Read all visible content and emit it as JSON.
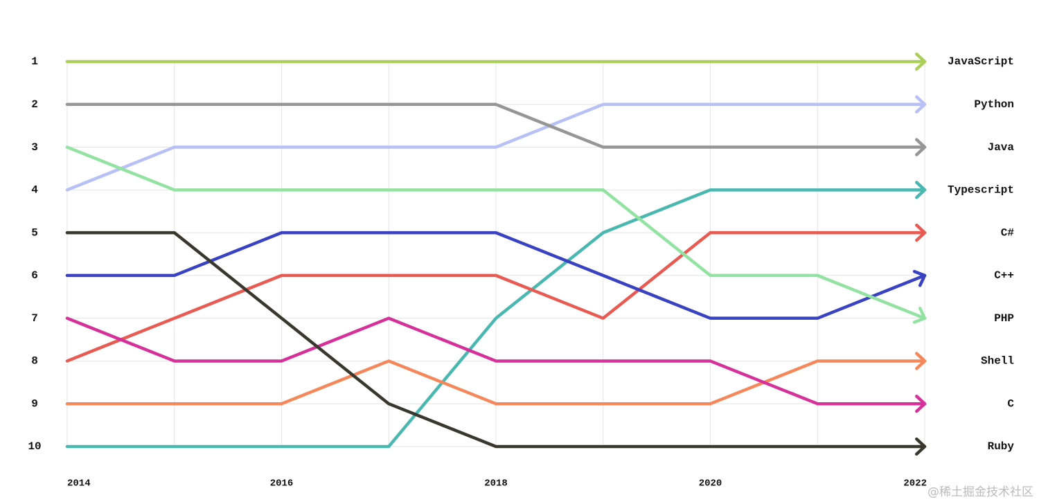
{
  "chart_data": {
    "type": "line",
    "x": [
      2014,
      2015,
      2016,
      2017,
      2018,
      2019,
      2020,
      2021,
      2022
    ],
    "xlim": [
      2014,
      2022
    ],
    "xticks": [
      2014,
      2016,
      2018,
      2020,
      2022
    ],
    "ylim": [
      10,
      1
    ],
    "yticks": [
      1,
      2,
      3,
      4,
      5,
      6,
      7,
      8,
      9,
      10
    ],
    "grid": true,
    "series": [
      {
        "name": "JavaScript",
        "color": "#a9cf58",
        "values": [
          1,
          1,
          1,
          1,
          1,
          1,
          1,
          1,
          1
        ]
      },
      {
        "name": "Python",
        "color": "#b8c0f8",
        "values": [
          4,
          3,
          3,
          3,
          3,
          2,
          2,
          2,
          2
        ]
      },
      {
        "name": "Java",
        "color": "#969696",
        "values": [
          2,
          2,
          2,
          2,
          2,
          3,
          3,
          3,
          3
        ]
      },
      {
        "name": "Typescript",
        "color": "#48b8b0",
        "values": [
          10,
          10,
          10,
          10,
          7,
          5,
          4,
          4,
          4
        ]
      },
      {
        "name": "C#",
        "color": "#e85a52",
        "values": [
          8,
          7,
          6,
          6,
          6,
          7,
          5,
          5,
          5
        ]
      },
      {
        "name": "C++",
        "color": "#3a42c4",
        "values": [
          6,
          6,
          5,
          5,
          5,
          6,
          7,
          7,
          6
        ]
      },
      {
        "name": "PHP",
        "color": "#92e3a2",
        "values": [
          3,
          4,
          4,
          4,
          4,
          4,
          6,
          6,
          7
        ]
      },
      {
        "name": "Shell",
        "color": "#f5875a",
        "values": [
          9,
          9,
          9,
          8,
          9,
          9,
          9,
          8,
          8
        ]
      },
      {
        "name": "C",
        "color": "#d6309a",
        "values": [
          7,
          8,
          8,
          7,
          8,
          8,
          8,
          9,
          9
        ]
      },
      {
        "name": "Ruby",
        "color": "#38382e",
        "values": [
          5,
          5,
          7,
          9,
          10,
          10,
          10,
          10,
          10
        ]
      }
    ],
    "watermark": "@稀土掘金技术社区"
  }
}
